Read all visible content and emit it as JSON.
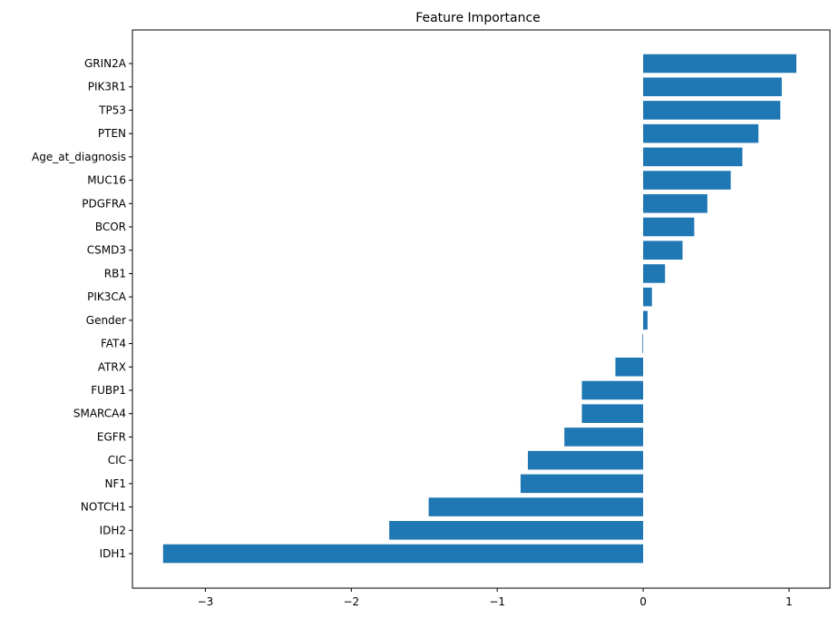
{
  "chart_data": {
    "type": "bar",
    "orientation": "horizontal",
    "title": "Feature Importance",
    "xlabel": "",
    "ylabel": "",
    "xlim": [
      -3.5,
      1.28
    ],
    "xticks": [
      -3,
      -2,
      -1,
      0,
      1
    ],
    "xtick_labels": [
      "−3",
      "−2",
      "−1",
      "0",
      "1"
    ],
    "grid": false,
    "bar_color": "#1f77b4",
    "categories": [
      "GRIN2A",
      "PIK3R1",
      "TP53",
      "PTEN",
      "Age_at_diagnosis",
      "MUC16",
      "PDGFRA",
      "BCOR",
      "CSMD3",
      "RB1",
      "PIK3CA",
      "Gender",
      "FAT4",
      "ATRX",
      "FUBP1",
      "SMARCA4",
      "EGFR",
      "CIC",
      "NF1",
      "NOTCH1",
      "IDH2",
      "IDH1"
    ],
    "values": [
      1.05,
      0.95,
      0.94,
      0.79,
      0.68,
      0.6,
      0.44,
      0.35,
      0.27,
      0.15,
      0.06,
      0.03,
      -0.005,
      -0.19,
      -0.42,
      -0.42,
      -0.54,
      -0.79,
      -0.84,
      -1.47,
      -1.74,
      -3.29
    ]
  }
}
